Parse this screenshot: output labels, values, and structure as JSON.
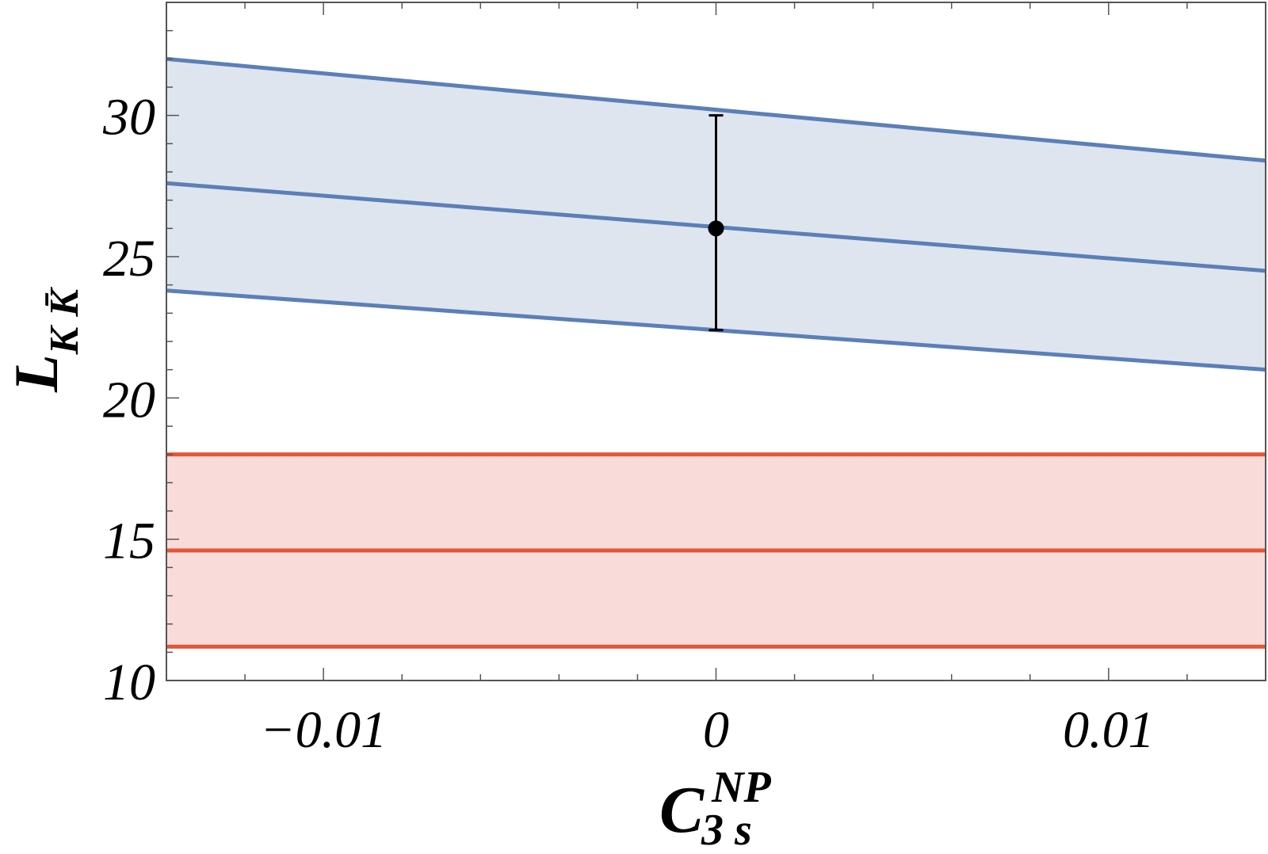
{
  "chart_data": {
    "type": "line",
    "title": "",
    "xlim": [
      -0.014,
      0.014
    ],
    "ylim": [
      10,
      34
    ],
    "xticks": [
      -0.01,
      0,
      0.01
    ],
    "xtick_labels": [
      "−0.01",
      "0",
      "0.01"
    ],
    "yticks": [
      10,
      15,
      20,
      25,
      30
    ],
    "ytick_labels": [
      "10",
      "15",
      "20",
      "25",
      "30"
    ],
    "ylabel": {
      "main": "L",
      "sub": "K K̄"
    },
    "xlabel": {
      "main": "C",
      "sub": "3 s",
      "sup": "NP"
    },
    "grid": false,
    "series": [
      {
        "role": "band",
        "color": "#5b7fb8",
        "fill": "#dfe5ef",
        "x": [
          -0.014,
          0.014
        ],
        "y_low": [
          23.8,
          21.0
        ],
        "y_mid": [
          27.6,
          24.5
        ],
        "y_high": [
          32.0,
          28.4
        ]
      },
      {
        "role": "band",
        "color": "#e5553a",
        "fill": "#f9dcd9",
        "x": [
          -0.014,
          0.014
        ],
        "y_low": [
          11.2,
          11.2
        ],
        "y_mid": [
          14.6,
          14.6
        ],
        "y_high": [
          18.0,
          18.0
        ]
      }
    ],
    "points": [
      {
        "x": 0,
        "y": 26.0,
        "y_low": 22.4,
        "y_high": 30.0,
        "color": "#000000"
      }
    ]
  }
}
